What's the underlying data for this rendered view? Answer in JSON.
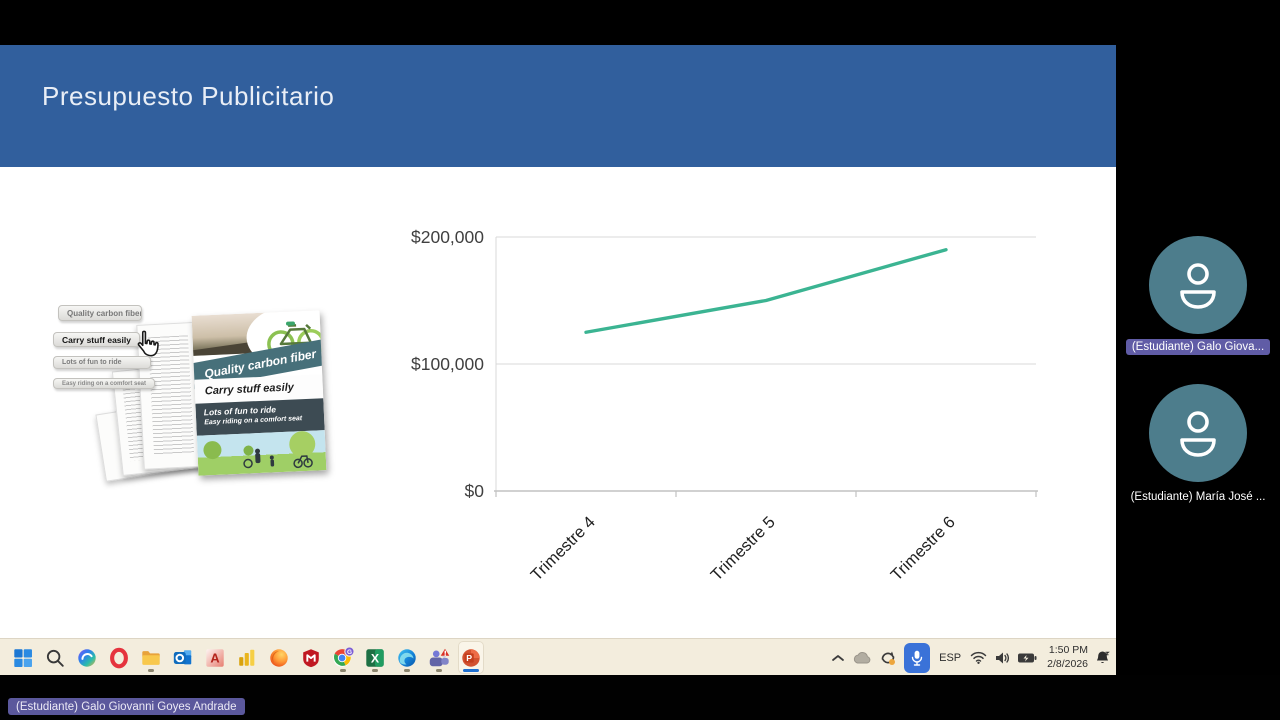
{
  "slide": {
    "title": "Presupuesto Publicitario",
    "header_color": "#315f9d",
    "clipart": {
      "callout_buttons": [
        "Quality carbon fiber",
        "Carry stuff easily",
        "Lots of fun to ride",
        "Easy riding on a comfort seat"
      ],
      "magazine": {
        "banner": "Quality carbon fiber",
        "line1": "Carry stuff easily",
        "line2": "Lots of fun to ride",
        "line3": "Easy riding on a comfort seat"
      }
    }
  },
  "chart_data": {
    "type": "line",
    "title": "",
    "categories": [
      "Trimestre 4",
      "Trimestre 5",
      "Trimestre 6"
    ],
    "values": [
      125000,
      150000,
      190000
    ],
    "y_ticks": [
      {
        "label": "$0",
        "value": 0
      },
      {
        "label": "$100,000",
        "value": 100000
      },
      {
        "label": "$200,000",
        "value": 200000
      }
    ],
    "ylim": [
      0,
      200000
    ],
    "xlabel": "",
    "ylabel": "",
    "grid": true,
    "legend": "none",
    "line_color": "#3bb492",
    "grid_color": "#d9d9d9",
    "axis_color": "#c2c2c2",
    "tick_label_color": "#404040",
    "category_label_color": "#1f1f1f"
  },
  "meeting": {
    "presenter_label": "(Estudiante) Galo Giovanni Goyes Andrade",
    "avatar_color": "#4d7d8c",
    "highlight_label_bg": "#605ca6",
    "participants": [
      {
        "label": "(Estudiante) Galo Giova...",
        "highlighted": true
      },
      {
        "label": "(Estudiante) María José ...",
        "highlighted": false
      }
    ]
  },
  "taskbar": {
    "apps": [
      {
        "id": "start",
        "running": false,
        "active": false
      },
      {
        "id": "search",
        "running": false,
        "active": false
      },
      {
        "id": "copilot",
        "running": false,
        "active": false
      },
      {
        "id": "opera",
        "running": false,
        "active": false
      },
      {
        "id": "file-explorer",
        "running": true,
        "active": false
      },
      {
        "id": "outlook",
        "running": false,
        "active": false
      },
      {
        "id": "autocad",
        "running": false,
        "active": false
      },
      {
        "id": "power-bi",
        "running": false,
        "active": false
      },
      {
        "id": "firefox",
        "running": false,
        "active": false
      },
      {
        "id": "mcafee",
        "running": false,
        "active": false
      },
      {
        "id": "chrome",
        "running": true,
        "active": false
      },
      {
        "id": "excel",
        "running": true,
        "active": false
      },
      {
        "id": "edge",
        "running": true,
        "active": false
      },
      {
        "id": "teams",
        "running": true,
        "active": false
      },
      {
        "id": "powerpoint",
        "running": true,
        "active": true
      }
    ],
    "tray_icons": [
      "chevron-up",
      "onedrive-cloud",
      "sync",
      "microphone",
      "wifi",
      "volume",
      "battery",
      "notification-bell"
    ],
    "tray": {
      "language": "ESP",
      "time": "1:50 PM",
      "date": "2/8/2026"
    }
  }
}
